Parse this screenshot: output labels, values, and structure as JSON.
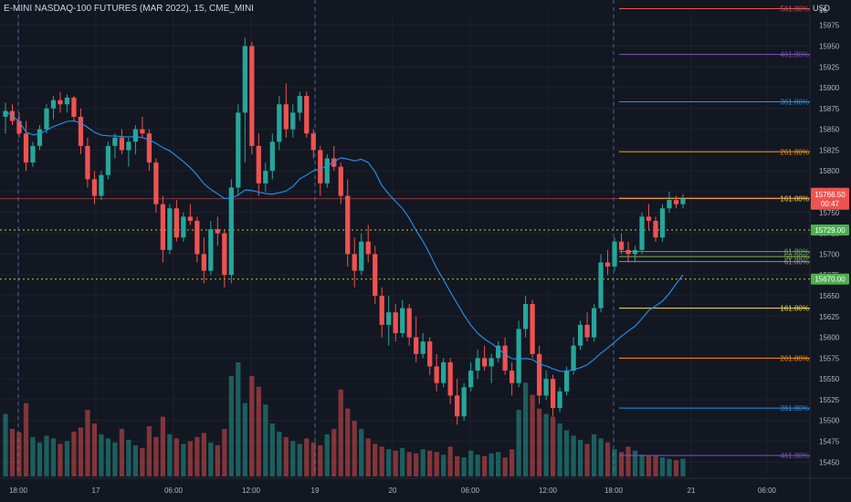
{
  "header": {
    "title": "E-MINI NASDAQ-100 FUTURES (MAR 2022), 15, CME_MINI",
    "currency": "USD"
  },
  "colors": {
    "background": "#131722",
    "grid": "#1e222d",
    "up": "#26a69a",
    "down": "#ef5350",
    "ma_line": "#2196f3",
    "axis_text": "#b2b5be"
  },
  "chart_data": {
    "type": "candlestick",
    "symbol": "E-MINI NASDAQ-100 FUTURES (MAR 2022)",
    "interval": "15",
    "exchange": "CME_MINI",
    "y_ticks": [
      15975,
      15950,
      15925,
      15900,
      15875,
      15850,
      15825,
      15800,
      15775,
      15750,
      15725,
      15700,
      15675,
      15650,
      15625,
      15600,
      15575,
      15550,
      15525,
      15500,
      15475,
      15450
    ],
    "x_ticks": [
      "18:00",
      "17",
      "06:00",
      "12:00",
      "19",
      "20",
      "06:00",
      "12:00",
      "18:00",
      "21",
      "06:00"
    ],
    "current_price": {
      "value": "15766.50",
      "countdown": "00:47"
    },
    "price_lines": [
      {
        "value": 15729.0,
        "label": "15729.00"
      },
      {
        "value": 15670.0,
        "label": "15670.00"
      }
    ],
    "fib_levels_upper": [
      {
        "label": "561.80%",
        "price": 15995,
        "color": "#ef5350"
      },
      {
        "label": "461.80%",
        "price": 15940,
        "color": "#7e57c2"
      },
      {
        "label": "361.80%",
        "price": 15883,
        "color": "#2196f3"
      },
      {
        "label": "261.80%",
        "price": 15823,
        "color": "#ff9800"
      },
      {
        "label": "161.80%",
        "price": 15767,
        "color": "#ffeb3b"
      }
    ],
    "fib_levels_mid": [
      {
        "label": "61.80%",
        "price": 15703
      },
      {
        "label": "50.00%",
        "price": 15697
      },
      {
        "label": "61.80%",
        "price": 15691
      }
    ],
    "fib_levels_lower": [
      {
        "label": "161.80%",
        "price": 15635,
        "color": "#ffeb3b"
      },
      {
        "label": "261.80%",
        "price": 15575,
        "color": "#ff9800"
      },
      {
        "label": "361.80%",
        "price": 15515,
        "color": "#2196f3"
      },
      {
        "label": "461.80%",
        "price": 15458,
        "color": "#7e57c2"
      }
    ],
    "fib_top_partial": "16",
    "candles": [
      {
        "o": 15865,
        "h": 15882,
        "l": 15845,
        "c": 15872
      },
      {
        "o": 15872,
        "h": 15880,
        "l": 15855,
        "c": 15860
      },
      {
        "o": 15860,
        "h": 15870,
        "l": 15840,
        "c": 15845
      },
      {
        "o": 15845,
        "h": 15860,
        "l": 15800,
        "c": 15810
      },
      {
        "o": 15810,
        "h": 15835,
        "l": 15805,
        "c": 15830
      },
      {
        "o": 15830,
        "h": 15855,
        "l": 15825,
        "c": 15850
      },
      {
        "o": 15850,
        "h": 15880,
        "l": 15845,
        "c": 15875
      },
      {
        "o": 15875,
        "h": 15890,
        "l": 15862,
        "c": 15885
      },
      {
        "o": 15885,
        "h": 15895,
        "l": 15870,
        "c": 15880
      },
      {
        "o": 15880,
        "h": 15892,
        "l": 15870,
        "c": 15888
      },
      {
        "o": 15888,
        "h": 15890,
        "l": 15860,
        "c": 15865
      },
      {
        "o": 15865,
        "h": 15875,
        "l": 15820,
        "c": 15830
      },
      {
        "o": 15830,
        "h": 15840,
        "l": 15780,
        "c": 15790
      },
      {
        "o": 15790,
        "h": 15800,
        "l": 15760,
        "c": 15770
      },
      {
        "o": 15770,
        "h": 15800,
        "l": 15765,
        "c": 15795
      },
      {
        "o": 15795,
        "h": 15835,
        "l": 15790,
        "c": 15830
      },
      {
        "o": 15830,
        "h": 15845,
        "l": 15815,
        "c": 15840
      },
      {
        "o": 15840,
        "h": 15850,
        "l": 15820,
        "c": 15825
      },
      {
        "o": 15825,
        "h": 15840,
        "l": 15805,
        "c": 15835
      },
      {
        "o": 15835,
        "h": 15855,
        "l": 15820,
        "c": 15850
      },
      {
        "o": 15850,
        "h": 15865,
        "l": 15840,
        "c": 15845
      },
      {
        "o": 15845,
        "h": 15850,
        "l": 15800,
        "c": 15810
      },
      {
        "o": 15810,
        "h": 15815,
        "l": 15750,
        "c": 15760
      },
      {
        "o": 15760,
        "h": 15770,
        "l": 15690,
        "c": 15705
      },
      {
        "o": 15705,
        "h": 15760,
        "l": 15700,
        "c": 15755
      },
      {
        "o": 15755,
        "h": 15765,
        "l": 15715,
        "c": 15720
      },
      {
        "o": 15720,
        "h": 15750,
        "l": 15715,
        "c": 15745
      },
      {
        "o": 15745,
        "h": 15760,
        "l": 15735,
        "c": 15740
      },
      {
        "o": 15740,
        "h": 15745,
        "l": 15690,
        "c": 15700
      },
      {
        "o": 15700,
        "h": 15720,
        "l": 15665,
        "c": 15680
      },
      {
        "o": 15680,
        "h": 15740,
        "l": 15675,
        "c": 15730
      },
      {
        "o": 15730,
        "h": 15745,
        "l": 15710,
        "c": 15725
      },
      {
        "o": 15725,
        "h": 15730,
        "l": 15660,
        "c": 15675
      },
      {
        "o": 15675,
        "h": 15790,
        "l": 15665,
        "c": 15780
      },
      {
        "o": 15780,
        "h": 15880,
        "l": 15770,
        "c": 15870
      },
      {
        "o": 15870,
        "h": 15960,
        "l": 15810,
        "c": 15950
      },
      {
        "o": 15950,
        "h": 15955,
        "l": 15820,
        "c": 15830
      },
      {
        "o": 15830,
        "h": 15845,
        "l": 15770,
        "c": 15785
      },
      {
        "o": 15785,
        "h": 15810,
        "l": 15775,
        "c": 15800
      },
      {
        "o": 15800,
        "h": 15845,
        "l": 15790,
        "c": 15835
      },
      {
        "o": 15835,
        "h": 15890,
        "l": 15825,
        "c": 15880
      },
      {
        "o": 15880,
        "h": 15905,
        "l": 15840,
        "c": 15850
      },
      {
        "o": 15850,
        "h": 15880,
        "l": 15840,
        "c": 15870
      },
      {
        "o": 15870,
        "h": 15895,
        "l": 15860,
        "c": 15890
      },
      {
        "o": 15890,
        "h": 15895,
        "l": 15840,
        "c": 15845
      },
      {
        "o": 15845,
        "h": 15850,
        "l": 15815,
        "c": 15825
      },
      {
        "o": 15825,
        "h": 15830,
        "l": 15770,
        "c": 15785
      },
      {
        "o": 15785,
        "h": 15820,
        "l": 15780,
        "c": 15815
      },
      {
        "o": 15815,
        "h": 15830,
        "l": 15800,
        "c": 15805
      },
      {
        "o": 15805,
        "h": 15810,
        "l": 15760,
        "c": 15770
      },
      {
        "o": 15770,
        "h": 15790,
        "l": 15685,
        "c": 15700
      },
      {
        "o": 15700,
        "h": 15720,
        "l": 15660,
        "c": 15680
      },
      {
        "o": 15680,
        "h": 15725,
        "l": 15675,
        "c": 15715
      },
      {
        "o": 15715,
        "h": 15735,
        "l": 15690,
        "c": 15700
      },
      {
        "o": 15700,
        "h": 15710,
        "l": 15640,
        "c": 15650
      },
      {
        "o": 15650,
        "h": 15660,
        "l": 15600,
        "c": 15615
      },
      {
        "o": 15615,
        "h": 15650,
        "l": 15590,
        "c": 15630
      },
      {
        "o": 15630,
        "h": 15640,
        "l": 15595,
        "c": 15605
      },
      {
        "o": 15605,
        "h": 15645,
        "l": 15600,
        "c": 15635
      },
      {
        "o": 15635,
        "h": 15640,
        "l": 15590,
        "c": 15600
      },
      {
        "o": 15600,
        "h": 15625,
        "l": 15570,
        "c": 15580
      },
      {
        "o": 15580,
        "h": 15605,
        "l": 15575,
        "c": 15595
      },
      {
        "o": 15595,
        "h": 15600,
        "l": 15555,
        "c": 15565
      },
      {
        "o": 15565,
        "h": 15580,
        "l": 15535,
        "c": 15545
      },
      {
        "o": 15545,
        "h": 15575,
        "l": 15540,
        "c": 15570
      },
      {
        "o": 15570,
        "h": 15575,
        "l": 15520,
        "c": 15530
      },
      {
        "o": 15530,
        "h": 15550,
        "l": 15495,
        "c": 15505
      },
      {
        "o": 15505,
        "h": 15545,
        "l": 15500,
        "c": 15540
      },
      {
        "o": 15540,
        "h": 15570,
        "l": 15535,
        "c": 15560
      },
      {
        "o": 15560,
        "h": 15585,
        "l": 15550,
        "c": 15575
      },
      {
        "o": 15575,
        "h": 15590,
        "l": 15560,
        "c": 15565
      },
      {
        "o": 15565,
        "h": 15580,
        "l": 15545,
        "c": 15575
      },
      {
        "o": 15575,
        "h": 15595,
        "l": 15570,
        "c": 15590
      },
      {
        "o": 15590,
        "h": 15600,
        "l": 15555,
        "c": 15560
      },
      {
        "o": 15560,
        "h": 15570,
        "l": 15530,
        "c": 15545
      },
      {
        "o": 15545,
        "h": 15620,
        "l": 15540,
        "c": 15610
      },
      {
        "o": 15610,
        "h": 15650,
        "l": 15600,
        "c": 15640
      },
      {
        "o": 15640,
        "h": 15645,
        "l": 15575,
        "c": 15580
      },
      {
        "o": 15580,
        "h": 15590,
        "l": 15520,
        "c": 15530
      },
      {
        "o": 15530,
        "h": 15560,
        "l": 15525,
        "c": 15550
      },
      {
        "o": 15550,
        "h": 15555,
        "l": 15505,
        "c": 15515
      },
      {
        "o": 15515,
        "h": 15540,
        "l": 15510,
        "c": 15535
      },
      {
        "o": 15535,
        "h": 15565,
        "l": 15530,
        "c": 15560
      },
      {
        "o": 15560,
        "h": 15600,
        "l": 15555,
        "c": 15590
      },
      {
        "o": 15590,
        "h": 15620,
        "l": 15585,
        "c": 15615
      },
      {
        "o": 15615,
        "h": 15630,
        "l": 15595,
        "c": 15600
      },
      {
        "o": 15600,
        "h": 15640,
        "l": 15595,
        "c": 15635
      },
      {
        "o": 15635,
        "h": 15700,
        "l": 15630,
        "c": 15690
      },
      {
        "o": 15690,
        "h": 15705,
        "l": 15675,
        "c": 15685
      },
      {
        "o": 15685,
        "h": 15720,
        "l": 15680,
        "c": 15715
      },
      {
        "o": 15715,
        "h": 15725,
        "l": 15700,
        "c": 15705
      },
      {
        "o": 15705,
        "h": 15715,
        "l": 15690,
        "c": 15700
      },
      {
        "o": 15700,
        "h": 15710,
        "l": 15690,
        "c": 15705
      },
      {
        "o": 15705,
        "h": 15750,
        "l": 15700,
        "c": 15745
      },
      {
        "o": 15745,
        "h": 15760,
        "l": 15730,
        "c": 15740
      },
      {
        "o": 15740,
        "h": 15745,
        "l": 15715,
        "c": 15720
      },
      {
        "o": 15720,
        "h": 15760,
        "l": 15715,
        "c": 15755
      },
      {
        "o": 15755,
        "h": 15775,
        "l": 15750,
        "c": 15765
      },
      {
        "o": 15765,
        "h": 15770,
        "l": 15755,
        "c": 15760
      },
      {
        "o": 15760,
        "h": 15772,
        "l": 15755,
        "c": 15766.5
      }
    ],
    "volume": [
      92,
      70,
      65,
      108,
      58,
      50,
      60,
      56,
      48,
      52,
      66,
      72,
      98,
      78,
      62,
      56,
      50,
      70,
      54,
      46,
      42,
      74,
      58,
      88,
      62,
      56,
      48,
      52,
      58,
      64,
      50,
      46,
      70,
      148,
      168,
      108,
      148,
      132,
      106,
      78,
      66,
      58,
      52,
      48,
      56,
      50,
      46,
      62,
      70,
      128,
      100,
      82,
      70,
      56,
      48,
      44,
      40,
      38,
      42,
      36,
      34,
      40,
      38,
      36,
      32,
      44,
      30,
      28,
      38,
      32,
      30,
      34,
      36,
      28,
      40,
      98,
      138,
      120,
      100,
      92,
      88,
      78,
      68,
      60,
      54,
      48,
      62,
      56,
      50,
      40,
      36,
      44,
      38,
      32,
      30,
      30,
      28,
      26,
      24,
      26
    ],
    "ma_period": 20
  }
}
